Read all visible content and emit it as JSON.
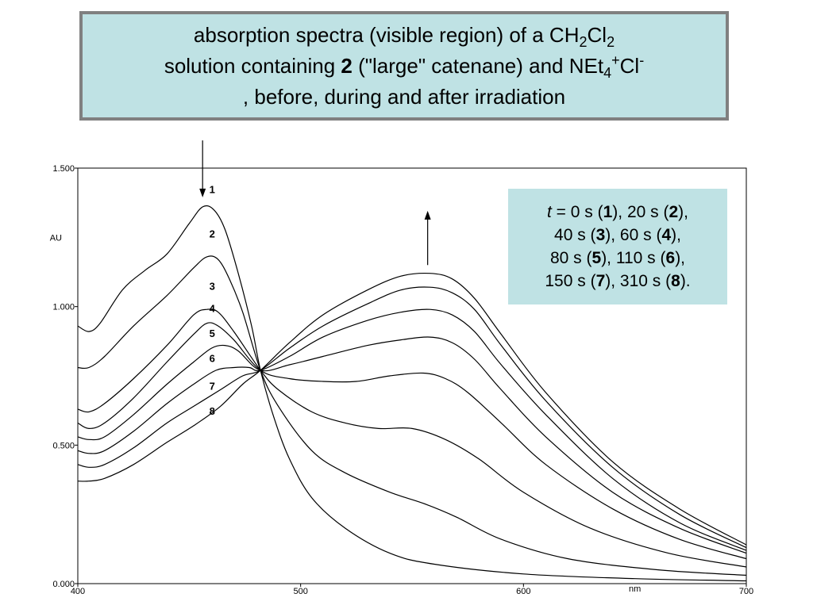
{
  "title": {
    "line1": {
      "prefix": "absorption spectra (visible region) of a CH",
      "sub1": "2",
      "mid": "Cl",
      "sub2": "2"
    },
    "line2": {
      "prefix": "solution containing ",
      "bold": "2",
      "mid": " (\"large\" catenane) and NEt",
      "sub": "4",
      "sup1": "+",
      "suffix": "Cl",
      "sup2": "-"
    },
    "line3": ", before, during and after irradiation"
  },
  "legend": {
    "lines": [
      [
        {
          "t": "t",
          "s": "i"
        },
        {
          "t": " = 0 s ("
        },
        {
          "t": "1",
          "s": "b"
        },
        {
          "t": "), 20 s ("
        },
        {
          "t": "2",
          "s": "b"
        },
        {
          "t": "),"
        }
      ],
      [
        {
          "t": "40 s ("
        },
        {
          "t": "3",
          "s": "b"
        },
        {
          "t": "), 60 s ("
        },
        {
          "t": "4",
          "s": "b"
        },
        {
          "t": "),"
        }
      ],
      [
        {
          "t": "80 s ("
        },
        {
          "t": "5",
          "s": "b"
        },
        {
          "t": "), 110 s ("
        },
        {
          "t": "6",
          "s": "b"
        },
        {
          "t": "),"
        }
      ],
      [
        {
          "t": "150 s ("
        },
        {
          "t": "7",
          "s": "b"
        },
        {
          "t": "), 310 s ("
        },
        {
          "t": "8",
          "s": "b"
        },
        {
          "t": ")."
        }
      ]
    ]
  },
  "chart_data": {
    "type": "line",
    "xlabel": "nm",
    "ylabel": "AU",
    "xlim": [
      400,
      700
    ],
    "ylim": [
      0,
      1.5
    ],
    "xticks": [
      {
        "v": 400,
        "label": "400"
      },
      {
        "v": 500,
        "label": "500"
      },
      {
        "v": 600,
        "label": "600"
      },
      {
        "v": 700,
        "label": "700"
      }
    ],
    "yticks": [
      {
        "v": 0,
        "label": "0.000"
      },
      {
        "v": 0.5,
        "label": "0.500"
      },
      {
        "v": 1.0,
        "label": "1.000"
      },
      {
        "v": 1.5,
        "label": "1.500"
      }
    ],
    "grid": false,
    "isosbestic_point": [
      482,
      0.77
    ],
    "series": [
      {
        "name": "1",
        "values": [
          [
            400,
            0.93
          ],
          [
            405,
            0.91
          ],
          [
            410,
            0.94
          ],
          [
            420,
            1.06
          ],
          [
            430,
            1.13
          ],
          [
            440,
            1.19
          ],
          [
            450,
            1.3
          ],
          [
            456,
            1.36
          ],
          [
            461,
            1.35
          ],
          [
            466,
            1.28
          ],
          [
            472,
            1.12
          ],
          [
            478,
            0.93
          ],
          [
            482,
            0.77
          ],
          [
            488,
            0.6
          ],
          [
            495,
            0.45
          ],
          [
            505,
            0.31
          ],
          [
            520,
            0.2
          ],
          [
            540,
            0.11
          ],
          [
            560,
            0.07
          ],
          [
            600,
            0.035
          ],
          [
            650,
            0.018
          ],
          [
            700,
            0.01
          ]
        ]
      },
      {
        "name": "2",
        "values": [
          [
            400,
            0.78
          ],
          [
            405,
            0.78
          ],
          [
            412,
            0.82
          ],
          [
            425,
            0.93
          ],
          [
            440,
            1.04
          ],
          [
            452,
            1.14
          ],
          [
            458,
            1.18
          ],
          [
            463,
            1.17
          ],
          [
            468,
            1.1
          ],
          [
            474,
            0.98
          ],
          [
            482,
            0.77
          ],
          [
            490,
            0.64
          ],
          [
            505,
            0.48
          ],
          [
            520,
            0.4
          ],
          [
            540,
            0.33
          ],
          [
            555,
            0.29
          ],
          [
            570,
            0.24
          ],
          [
            590,
            0.16
          ],
          [
            620,
            0.09
          ],
          [
            660,
            0.05
          ],
          [
            700,
            0.03
          ]
        ]
      },
      {
        "name": "3",
        "values": [
          [
            400,
            0.63
          ],
          [
            405,
            0.62
          ],
          [
            412,
            0.65
          ],
          [
            425,
            0.74
          ],
          [
            440,
            0.86
          ],
          [
            452,
            0.97
          ],
          [
            458,
            0.99
          ],
          [
            463,
            0.98
          ],
          [
            470,
            0.91
          ],
          [
            482,
            0.77
          ],
          [
            490,
            0.7
          ],
          [
            505,
            0.62
          ],
          [
            520,
            0.58
          ],
          [
            535,
            0.56
          ],
          [
            550,
            0.56
          ],
          [
            565,
            0.52
          ],
          [
            580,
            0.45
          ],
          [
            600,
            0.33
          ],
          [
            630,
            0.2
          ],
          [
            665,
            0.11
          ],
          [
            700,
            0.06
          ]
        ]
      },
      {
        "name": "4",
        "values": [
          [
            400,
            0.58
          ],
          [
            405,
            0.56
          ],
          [
            412,
            0.58
          ],
          [
            425,
            0.67
          ],
          [
            440,
            0.8
          ],
          [
            452,
            0.9
          ],
          [
            458,
            0.94
          ],
          [
            463,
            0.93
          ],
          [
            470,
            0.88
          ],
          [
            482,
            0.77
          ],
          [
            495,
            0.74
          ],
          [
            510,
            0.73
          ],
          [
            525,
            0.73
          ],
          [
            540,
            0.75
          ],
          [
            555,
            0.76
          ],
          [
            565,
            0.74
          ],
          [
            575,
            0.69
          ],
          [
            590,
            0.58
          ],
          [
            610,
            0.43
          ],
          [
            640,
            0.27
          ],
          [
            670,
            0.16
          ],
          [
            700,
            0.09
          ]
        ]
      },
      {
        "name": "5",
        "values": [
          [
            400,
            0.53
          ],
          [
            405,
            0.52
          ],
          [
            412,
            0.53
          ],
          [
            425,
            0.61
          ],
          [
            440,
            0.72
          ],
          [
            452,
            0.8
          ],
          [
            460,
            0.85
          ],
          [
            466,
            0.86
          ],
          [
            472,
            0.84
          ],
          [
            482,
            0.77
          ],
          [
            495,
            0.79
          ],
          [
            510,
            0.82
          ],
          [
            530,
            0.86
          ],
          [
            545,
            0.88
          ],
          [
            558,
            0.89
          ],
          [
            568,
            0.87
          ],
          [
            578,
            0.81
          ],
          [
            590,
            0.7
          ],
          [
            610,
            0.53
          ],
          [
            640,
            0.33
          ],
          [
            670,
            0.2
          ],
          [
            700,
            0.11
          ]
        ]
      },
      {
        "name": "6",
        "values": [
          [
            400,
            0.48
          ],
          [
            405,
            0.47
          ],
          [
            412,
            0.48
          ],
          [
            425,
            0.55
          ],
          [
            440,
            0.65
          ],
          [
            452,
            0.72
          ],
          [
            462,
            0.77
          ],
          [
            470,
            0.78
          ],
          [
            477,
            0.78
          ],
          [
            482,
            0.77
          ],
          [
            495,
            0.82
          ],
          [
            510,
            0.89
          ],
          [
            530,
            0.95
          ],
          [
            545,
            0.98
          ],
          [
            558,
            0.99
          ],
          [
            568,
            0.97
          ],
          [
            578,
            0.91
          ],
          [
            590,
            0.79
          ],
          [
            610,
            0.61
          ],
          [
            640,
            0.38
          ],
          [
            670,
            0.22
          ],
          [
            700,
            0.12
          ]
        ]
      },
      {
        "name": "7",
        "values": [
          [
            400,
            0.43
          ],
          [
            405,
            0.42
          ],
          [
            412,
            0.43
          ],
          [
            425,
            0.49
          ],
          [
            440,
            0.58
          ],
          [
            452,
            0.64
          ],
          [
            464,
            0.7
          ],
          [
            474,
            0.75
          ],
          [
            482,
            0.77
          ],
          [
            495,
            0.85
          ],
          [
            510,
            0.93
          ],
          [
            530,
            1.01
          ],
          [
            545,
            1.06
          ],
          [
            558,
            1.07
          ],
          [
            568,
            1.05
          ],
          [
            578,
            0.99
          ],
          [
            590,
            0.86
          ],
          [
            610,
            0.66
          ],
          [
            640,
            0.42
          ],
          [
            670,
            0.25
          ],
          [
            700,
            0.13
          ]
        ]
      },
      {
        "name": "8",
        "values": [
          [
            400,
            0.37
          ],
          [
            405,
            0.37
          ],
          [
            412,
            0.38
          ],
          [
            425,
            0.43
          ],
          [
            440,
            0.51
          ],
          [
            452,
            0.57
          ],
          [
            464,
            0.64
          ],
          [
            474,
            0.72
          ],
          [
            482,
            0.77
          ],
          [
            495,
            0.87
          ],
          [
            510,
            0.97
          ],
          [
            530,
            1.06
          ],
          [
            545,
            1.11
          ],
          [
            558,
            1.12
          ],
          [
            568,
            1.1
          ],
          [
            578,
            1.03
          ],
          [
            590,
            0.9
          ],
          [
            610,
            0.69
          ],
          [
            640,
            0.44
          ],
          [
            670,
            0.27
          ],
          [
            700,
            0.14
          ]
        ]
      }
    ],
    "curve_labels": [
      {
        "text": "1",
        "x": 459,
        "y": 1.41
      },
      {
        "text": "2",
        "x": 459,
        "y": 1.25
      },
      {
        "text": "3",
        "x": 459,
        "y": 1.06
      },
      {
        "text": "4",
        "x": 459,
        "y": 0.98
      },
      {
        "text": "5",
        "x": 459,
        "y": 0.89
      },
      {
        "text": "6",
        "x": 459,
        "y": 0.8
      },
      {
        "text": "7",
        "x": 459,
        "y": 0.7
      },
      {
        "text": "8",
        "x": 459,
        "y": 0.61
      }
    ],
    "arrows": [
      {
        "direction": "down",
        "x": 456,
        "y_from": 1.6,
        "y_to": 1.4
      },
      {
        "direction": "up",
        "x": 557,
        "y_from": 1.15,
        "y_to": 1.34
      }
    ]
  }
}
